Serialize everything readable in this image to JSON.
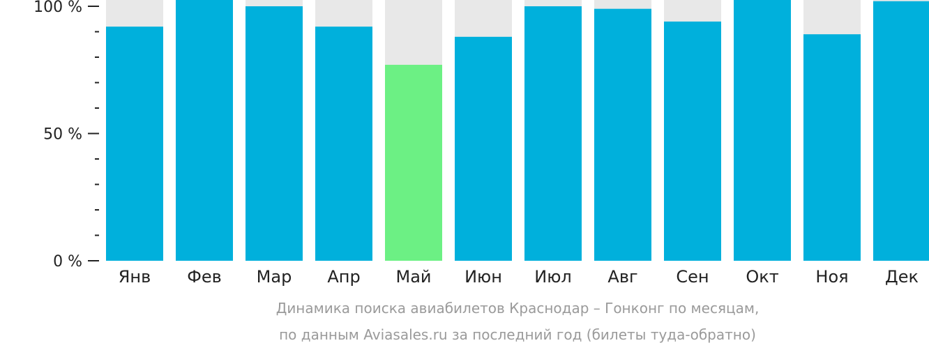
{
  "chart_data": {
    "type": "bar",
    "categories": [
      "Янв",
      "Фев",
      "Мар",
      "Апр",
      "Май",
      "Июн",
      "Июл",
      "Авг",
      "Сен",
      "Окт",
      "Ноя",
      "Дек"
    ],
    "values": [
      92,
      104,
      100,
      92,
      77,
      88,
      100,
      99,
      94,
      104,
      89,
      102
    ],
    "highlight_index": 4,
    "ylim": [
      0,
      100
    ],
    "yticks": [
      {
        "value": 0,
        "label": "0 %"
      },
      {
        "value": 50,
        "label": "50 %"
      },
      {
        "value": 100,
        "label": "100 %"
      }
    ],
    "minor_tick_step": 10,
    "title": "",
    "xlabel": "",
    "ylabel": "",
    "grid": false,
    "legend": "none",
    "colors": {
      "bar": "#00b0dc",
      "highlight": "#6cf084",
      "background_bar": "#e8e8e8",
      "axis": "#222222"
    }
  },
  "caption": {
    "line1": "Динамика поиска авиабилетов Краснодар – Гонконг по месяцам,",
    "line2": "по данным Aviasales.ru за последний год (билеты туда-обратно)"
  }
}
